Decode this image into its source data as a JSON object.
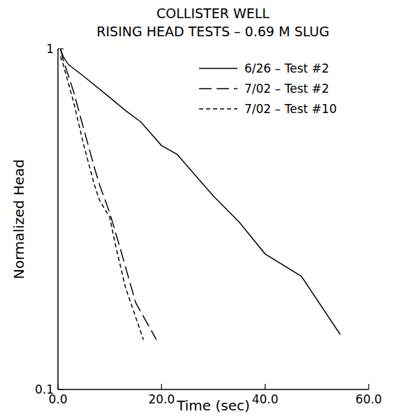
{
  "chart_data": {
    "type": "line",
    "title": "COLLISTER WELL",
    "subtitle": "RISING HEAD TESTS – 0.69 M SLUG",
    "x_label": "Time (sec)",
    "y_label": "Normalized Head",
    "log": "y",
    "legend": "upper right",
    "xlim": [
      0,
      60
    ],
    "ylim": [
      0.1,
      1
    ],
    "xticks": [
      {
        "value": 0,
        "label": "0.0"
      },
      {
        "value": 20,
        "label": "20.0"
      },
      {
        "value": 40,
        "label": "40.0"
      },
      {
        "value": 60,
        "label": "60.0"
      }
    ],
    "yticks": [
      0.1,
      1
    ],
    "series": [
      {
        "name": "6/26 – Test #2",
        "color": "#000000",
        "line_style": "solid",
        "x": [
          0.5,
          1,
          2,
          5,
          10,
          13,
          16,
          20,
          23,
          30,
          35,
          40,
          47,
          54.5
        ],
        "values": [
          1.0,
          0.95,
          0.9,
          0.83,
          0.72,
          0.66,
          0.61,
          0.52,
          0.49,
          0.37,
          0.31,
          0.25,
          0.215,
          0.145
        ]
      },
      {
        "name": "7/02 – Test #2",
        "color": "#000000",
        "line_style": "long-dash",
        "x": [
          0.5,
          1,
          3,
          5,
          7,
          8,
          10,
          12,
          15,
          19
        ],
        "values": [
          1.0,
          0.93,
          0.75,
          0.58,
          0.45,
          0.4,
          0.33,
          0.26,
          0.18,
          0.14
        ]
      },
      {
        "name": "7/02 – Test #10",
        "color": "#000000",
        "line_style": "short-dash",
        "x": [
          0.5,
          1,
          3,
          5,
          7,
          8,
          10,
          11,
          13,
          16.5
        ],
        "values": [
          0.95,
          0.9,
          0.7,
          0.52,
          0.4,
          0.36,
          0.32,
          0.27,
          0.2,
          0.14
        ]
      }
    ]
  }
}
